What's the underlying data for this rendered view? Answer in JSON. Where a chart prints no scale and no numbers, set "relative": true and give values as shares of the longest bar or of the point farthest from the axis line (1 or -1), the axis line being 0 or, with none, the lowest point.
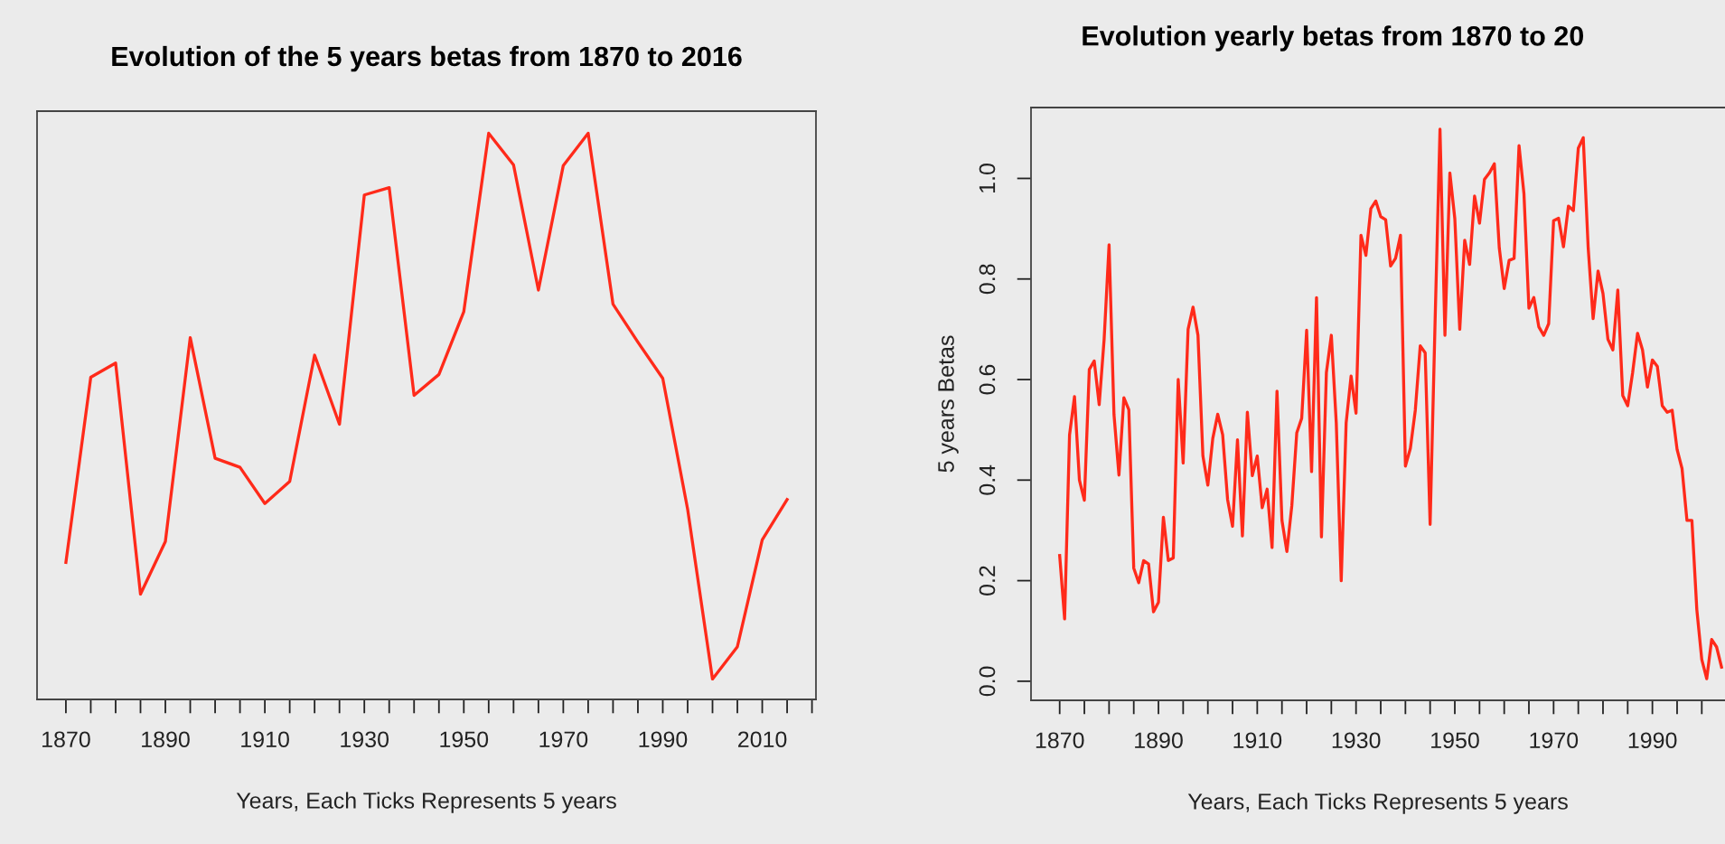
{
  "chart_data": [
    {
      "type": "line",
      "title": "Evolution of the 5 years betas from 1870 to 2016",
      "xlabel": "Years, Each Ticks Represents 5 years",
      "relative": true,
      "tick_labels": "x",
      "color": "#ff2a1a",
      "line_style": "solid",
      "x": [
        1870,
        1875,
        1880,
        1885,
        1890,
        1895,
        1900,
        1905,
        1910,
        1915,
        1920,
        1925,
        1930,
        1935,
        1940,
        1945,
        1950,
        1955,
        1960,
        1965,
        1970,
        1975,
        1980,
        1985,
        1990,
        1995,
        2000,
        2005,
        2010,
        2015
      ],
      "values": [
        0.242,
        0.569,
        0.594,
        0.186,
        0.279,
        0.639,
        0.426,
        0.41,
        0.346,
        0.385,
        0.608,
        0.486,
        0.891,
        0.904,
        0.537,
        0.574,
        0.685,
        1.0,
        0.944,
        0.723,
        0.943,
        1.0,
        0.698,
        0.631,
        0.567,
        0.336,
        0.036,
        0.093,
        0.282,
        0.353
      ],
      "xlim": [
        1864.2,
        2020.8
      ],
      "xticks": [
        1870,
        {
          "value": 1875,
          "label": null
        },
        {
          "value": 1880,
          "label": null
        },
        {
          "value": 1885,
          "label": null
        },
        1890,
        {
          "value": 1895,
          "label": null
        },
        {
          "value": 1900,
          "label": null
        },
        {
          "value": 1905,
          "label": null
        },
        1910,
        {
          "value": 1915,
          "label": null
        },
        {
          "value": 1920,
          "label": null
        },
        {
          "value": 1925,
          "label": null
        },
        1930,
        {
          "value": 1935,
          "label": null
        },
        {
          "value": 1940,
          "label": null
        },
        {
          "value": 1945,
          "label": null
        },
        1950,
        {
          "value": 1955,
          "label": null
        },
        {
          "value": 1960,
          "label": null
        },
        {
          "value": 1965,
          "label": null
        },
        1970,
        {
          "value": 1975,
          "label": null
        },
        {
          "value": 1980,
          "label": null
        },
        {
          "value": 1985,
          "label": null
        },
        1990,
        {
          "value": 1995,
          "label": null
        },
        {
          "value": 2000,
          "label": null
        },
        {
          "value": 2005,
          "label": null
        },
        2010,
        {
          "value": 2015,
          "label": null
        },
        {
          "value": 2020,
          "label": null
        }
      ]
    },
    {
      "type": "line",
      "title": "Evolution yearly betas from 1870 to 20",
      "xlabel": "Years, Each Ticks Represents 5 years",
      "ylabel": "5 years Betas",
      "color": "#ff2a1a",
      "line_style": "solid",
      "x": [
        1870,
        1871,
        1872,
        1873,
        1874,
        1875,
        1876,
        1877,
        1878,
        1879,
        1880,
        1881,
        1882,
        1883,
        1884,
        1885,
        1886,
        1887,
        1888,
        1889,
        1890,
        1891,
        1892,
        1893,
        1894,
        1895,
        1896,
        1897,
        1898,
        1899,
        1900,
        1901,
        1902,
        1903,
        1904,
        1905,
        1906,
        1907,
        1908,
        1909,
        1910,
        1911,
        1912,
        1913,
        1914,
        1915,
        1916,
        1917,
        1918,
        1919,
        1920,
        1921,
        1922,
        1923,
        1924,
        1925,
        1926,
        1927,
        1928,
        1929,
        1930,
        1931,
        1932,
        1933,
        1934,
        1935,
        1936,
        1937,
        1938,
        1939,
        1940,
        1941,
        1942,
        1943,
        1944,
        1945,
        1946,
        1947,
        1948,
        1949,
        1950,
        1951,
        1952,
        1953,
        1954,
        1955,
        1956,
        1957,
        1958,
        1959,
        1960,
        1961,
        1962,
        1963,
        1964,
        1965,
        1966,
        1967,
        1968,
        1969,
        1970,
        1971,
        1972,
        1973,
        1974,
        1975,
        1976,
        1977,
        1978,
        1979,
        1980,
        1981,
        1982,
        1983,
        1984,
        1985,
        1986,
        1987,
        1988,
        1989,
        1990,
        1991,
        1992,
        1993,
        1994,
        1995,
        1996,
        1997,
        1998,
        1999,
        2000,
        2001,
        2002,
        2003,
        2004
      ],
      "values": [
        0.25,
        0.124,
        0.49,
        0.566,
        0.4,
        0.36,
        0.62,
        0.637,
        0.55,
        0.68,
        0.868,
        0.53,
        0.41,
        0.564,
        0.54,
        0.225,
        0.196,
        0.24,
        0.233,
        0.138,
        0.157,
        0.326,
        0.24,
        0.245,
        0.6,
        0.434,
        0.7,
        0.744,
        0.688,
        0.448,
        0.39,
        0.483,
        0.531,
        0.49,
        0.361,
        0.308,
        0.48,
        0.289,
        0.535,
        0.409,
        0.448,
        0.345,
        0.382,
        0.266,
        0.577,
        0.32,
        0.258,
        0.349,
        0.494,
        0.523,
        0.698,
        0.417,
        0.763,
        0.287,
        0.614,
        0.688,
        0.514,
        0.2,
        0.514,
        0.607,
        0.533,
        0.887,
        0.847,
        0.94,
        0.955,
        0.924,
        0.918,
        0.826,
        0.841,
        0.887,
        0.428,
        0.463,
        0.539,
        0.667,
        0.653,
        0.312,
        0.713,
        1.098,
        0.688,
        1.011,
        0.92,
        0.7,
        0.877,
        0.829,
        0.965,
        0.911,
        0.998,
        1.011,
        1.029,
        0.862,
        0.781,
        0.837,
        0.841,
        1.065,
        0.969,
        0.742,
        0.763,
        0.705,
        0.688,
        0.711,
        0.916,
        0.921,
        0.864,
        0.945,
        0.936,
        1.06,
        1.081,
        0.862,
        0.721,
        0.816,
        0.771,
        0.68,
        0.659,
        0.778,
        0.568,
        0.548,
        0.614,
        0.692,
        0.659,
        0.585,
        0.639,
        0.626,
        0.548,
        0.535,
        0.539,
        0.461,
        0.423,
        0.32,
        0.32,
        0.142,
        0.043,
        0.005,
        0.083,
        0.068,
        0.028
      ],
      "xlim": [
        1864.2,
        2004.7
      ],
      "ylim": [
        -0.038,
        1.141
      ],
      "yticks": [
        {
          "value": 0,
          "label": "0.0"
        },
        0.2,
        0.4,
        0.6,
        0.8,
        {
          "value": 1,
          "label": "1.0"
        }
      ],
      "xticks": [
        1870,
        {
          "value": 1875,
          "label": null
        },
        {
          "value": 1880,
          "label": null
        },
        {
          "value": 1885,
          "label": null
        },
        1890,
        {
          "value": 1895,
          "label": null
        },
        {
          "value": 1900,
          "label": null
        },
        {
          "value": 1905,
          "label": null
        },
        1910,
        {
          "value": 1915,
          "label": null
        },
        {
          "value": 1920,
          "label": null
        },
        {
          "value": 1925,
          "label": null
        },
        1930,
        {
          "value": 1935,
          "label": null
        },
        {
          "value": 1940,
          "label": null
        },
        {
          "value": 1945,
          "label": null
        },
        1950,
        {
          "value": 1955,
          "label": null
        },
        {
          "value": 1960,
          "label": null
        },
        {
          "value": 1965,
          "label": null
        },
        1970,
        {
          "value": 1975,
          "label": null
        },
        {
          "value": 1980,
          "label": null
        },
        {
          "value": 1985,
          "label": null
        },
        1990,
        {
          "value": 1995,
          "label": null
        },
        {
          "value": 2000,
          "label": null
        }
      ]
    }
  ]
}
